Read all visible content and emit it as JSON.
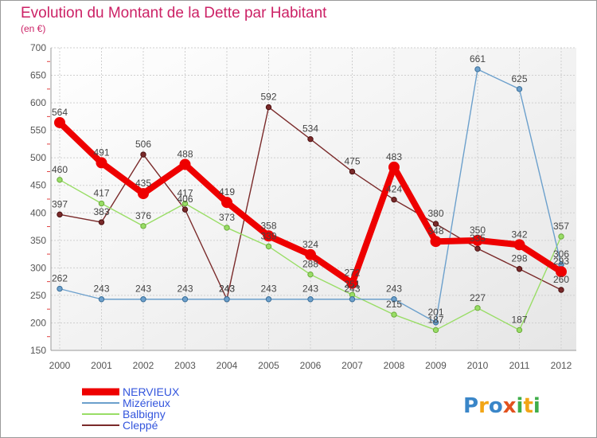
{
  "chart_data": {
    "type": "line",
    "title": "Evolution du Montant de la Dette par Habitant",
    "subtitle": "(en €)",
    "categories": [
      "2000",
      "2001",
      "2002",
      "2003",
      "2004",
      "2005",
      "2006",
      "2007",
      "2008",
      "2009",
      "2010",
      "2011",
      "2012"
    ],
    "ylim": [
      150,
      700
    ],
    "yticks": [
      150,
      200,
      250,
      300,
      350,
      400,
      450,
      500,
      550,
      600,
      650,
      700
    ],
    "grid": true,
    "legend_position": "bottom-left",
    "series": [
      {
        "name": "NERVIEUX",
        "color": "#ee0000",
        "values": [
          564,
          491,
          435,
          488,
          419,
          358,
          324,
          272,
          483,
          348,
          350,
          342,
          293
        ],
        "labels": [
          "564",
          "491",
          "435",
          "488",
          "419",
          "358",
          "324",
          "272",
          "483",
          "348",
          "350",
          "342",
          "293"
        ]
      },
      {
        "name": "Mizérieux",
        "color": "#6ca0cc",
        "values": [
          262,
          243,
          243,
          243,
          243,
          243,
          243,
          243,
          243,
          201,
          661,
          625,
          306
        ],
        "labels": [
          "262",
          "243",
          "243",
          "243",
          "243",
          "243",
          "243",
          "243",
          "243",
          "201",
          "661",
          "625",
          "306"
        ]
      },
      {
        "name": "Balbigny",
        "color": "#99dd66",
        "values": [
          460,
          417,
          376,
          417,
          373,
          339,
          288,
          251,
          215,
          187,
          227,
          187,
          357
        ],
        "labels": [
          "460",
          "417",
          "376",
          "417",
          "373",
          "339",
          "288",
          "251",
          "215",
          "187",
          "227",
          "187",
          "357"
        ]
      },
      {
        "name": "Cleppé",
        "color": "#7a2a2a",
        "values": [
          397,
          383,
          506,
          406,
          243,
          592,
          534,
          475,
          424,
          380,
          335,
          298,
          260
        ],
        "labels": [
          "397",
          "383",
          "506",
          "406",
          "243",
          "592",
          "534",
          "475",
          "424",
          "380",
          "335",
          "298",
          "260"
        ]
      }
    ]
  },
  "brand": {
    "letters": [
      "P",
      "r",
      "o",
      "x",
      "i",
      "t",
      "i"
    ],
    "colors": [
      "#3a86c8",
      "#f2a516",
      "#3a86c8",
      "#e2521f",
      "#3fae4a",
      "#f2a516",
      "#3fae4a"
    ]
  }
}
